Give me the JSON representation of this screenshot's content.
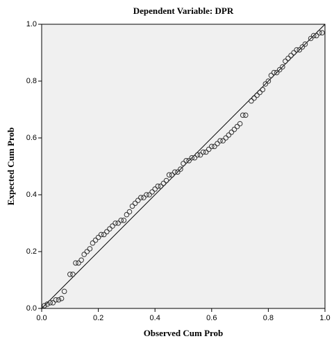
{
  "chart_data": {
    "type": "scatter",
    "title": "Dependent Variable: DPR",
    "x_label": "Observed Cum Prob",
    "y_label": "Expected Cum Prob",
    "x": [
      0.01,
      0.02,
      0.03,
      0.04,
      0.05,
      0.06,
      0.07,
      0.08,
      0.1,
      0.11,
      0.12,
      0.13,
      0.14,
      0.15,
      0.16,
      0.17,
      0.18,
      0.19,
      0.2,
      0.21,
      0.22,
      0.23,
      0.24,
      0.25,
      0.26,
      0.27,
      0.28,
      0.29,
      0.3,
      0.31,
      0.32,
      0.33,
      0.34,
      0.35,
      0.36,
      0.37,
      0.38,
      0.39,
      0.4,
      0.41,
      0.42,
      0.43,
      0.44,
      0.45,
      0.46,
      0.47,
      0.48,
      0.49,
      0.5,
      0.51,
      0.52,
      0.53,
      0.54,
      0.55,
      0.56,
      0.57,
      0.58,
      0.59,
      0.6,
      0.61,
      0.62,
      0.63,
      0.64,
      0.65,
      0.66,
      0.67,
      0.68,
      0.69,
      0.7,
      0.71,
      0.72,
      0.74,
      0.75,
      0.76,
      0.77,
      0.78,
      0.79,
      0.8,
      0.81,
      0.82,
      0.83,
      0.84,
      0.85,
      0.86,
      0.87,
      0.88,
      0.89,
      0.9,
      0.91,
      0.92,
      0.93,
      0.95,
      0.96,
      0.97,
      0.98,
      0.99
    ],
    "values": [
      0.01,
      0.015,
      0.02,
      0.02,
      0.03,
      0.03,
      0.035,
      0.06,
      0.12,
      0.12,
      0.16,
      0.16,
      0.17,
      0.19,
      0.2,
      0.21,
      0.23,
      0.24,
      0.25,
      0.26,
      0.26,
      0.27,
      0.28,
      0.29,
      0.3,
      0.3,
      0.31,
      0.31,
      0.33,
      0.34,
      0.36,
      0.37,
      0.38,
      0.39,
      0.39,
      0.4,
      0.4,
      0.41,
      0.42,
      0.43,
      0.43,
      0.44,
      0.45,
      0.47,
      0.47,
      0.48,
      0.48,
      0.49,
      0.51,
      0.52,
      0.52,
      0.53,
      0.53,
      0.54,
      0.54,
      0.55,
      0.55,
      0.56,
      0.57,
      0.57,
      0.58,
      0.59,
      0.59,
      0.6,
      0.61,
      0.62,
      0.63,
      0.64,
      0.65,
      0.68,
      0.68,
      0.73,
      0.74,
      0.75,
      0.76,
      0.77,
      0.79,
      0.8,
      0.82,
      0.83,
      0.83,
      0.84,
      0.85,
      0.87,
      0.88,
      0.89,
      0.9,
      0.91,
      0.91,
      0.92,
      0.93,
      0.95,
      0.96,
      0.96,
      0.97,
      0.97
    ],
    "xlim": [
      0,
      1
    ],
    "ylim": [
      0,
      1
    ],
    "xticks": [
      {
        "value": 0,
        "label": "0.0"
      },
      0.2,
      0.4,
      0.6,
      0.8,
      {
        "value": 1,
        "label": "1.0"
      }
    ],
    "yticks": [
      {
        "value": 0,
        "label": "0.0"
      },
      0.2,
      0.4,
      0.6,
      0.8,
      {
        "value": 1,
        "label": "1.0"
      }
    ],
    "color": "#333333",
    "reference_line": true
  }
}
